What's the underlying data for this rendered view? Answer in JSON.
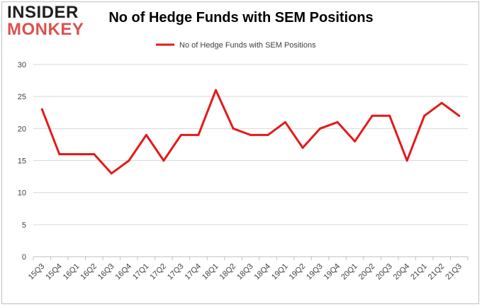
{
  "logo": {
    "line1": "INSIDER",
    "line2": "MONKEY"
  },
  "chart_data": {
    "type": "line",
    "title": "No of Hedge Funds with SEM Positions",
    "xlabel": "",
    "ylabel": "",
    "ylim": [
      0,
      30
    ],
    "yticks": [
      0,
      5,
      10,
      15,
      20,
      25,
      30
    ],
    "grid": true,
    "legend_position": "top-center",
    "categories": [
      "15Q3",
      "15Q4",
      "16Q1",
      "16Q2",
      "16Q3",
      "16Q4",
      "17Q1",
      "17Q2",
      "17Q3",
      "17Q4",
      "18Q1",
      "18Q2",
      "18Q3",
      "18Q4",
      "19Q1",
      "19Q2",
      "19Q3",
      "19Q4",
      "20Q1",
      "20Q2",
      "20Q3",
      "20Q4",
      "21Q1",
      "21Q2",
      "21Q3"
    ],
    "series": [
      {
        "name": "No of Hedge Funds with SEM Positions",
        "color": "#e31a1c",
        "values": [
          23,
          16,
          16,
          16,
          13,
          15,
          19,
          15,
          19,
          19,
          26,
          20,
          19,
          19,
          21,
          17,
          20,
          21,
          18,
          22,
          22,
          15,
          22,
          24,
          22
        ]
      }
    ]
  }
}
